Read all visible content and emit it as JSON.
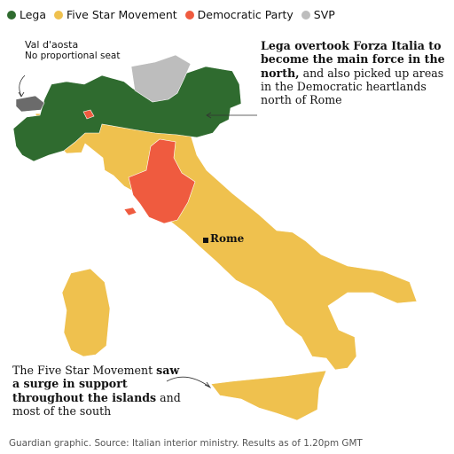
{
  "legend": [
    {
      "label": "Lega",
      "color": "#2f6b2f"
    },
    {
      "label": "Five Star Movement",
      "color": "#efc14e"
    },
    {
      "label": "Democratic Party",
      "color": "#ef5b3f"
    },
    {
      "label": "SVP",
      "color": "#bdbdbd"
    }
  ],
  "annotations": {
    "aosta": {
      "title": "Val d'aosta",
      "body": "No proportional seat"
    },
    "north": {
      "bold": "Lega overtook Forza Italia to become the main force in the north,",
      "rest": " and also picked up areas in the Democratic heartlands north of Rome"
    },
    "south": {
      "pre": "The Five Star Movement ",
      "bold": "saw a surge in support throughout the islands",
      "post": " and most of the south"
    }
  },
  "map": {
    "city": "Rome",
    "no_seat_color": "#6b6b6b"
  },
  "footer": "Guardian graphic. Source: Italian interior ministry. Results as of 1.20pm GMT"
}
